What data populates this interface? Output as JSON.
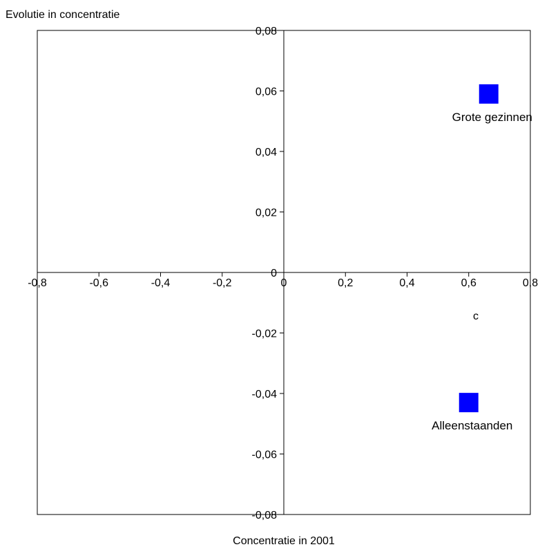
{
  "chart_data": {
    "type": "scatter",
    "title": "",
    "xlabel": "Concentratie in 2001",
    "ylabel": "Evolutie in concentratie",
    "xlim": [
      -0.8,
      0.8
    ],
    "ylim": [
      -0.08,
      0.08
    ],
    "x_ticks": [
      "-0,8",
      "-0,6",
      "-0,4",
      "-0,2",
      "0",
      "0,2",
      "0,4",
      "0,6",
      "0,8"
    ],
    "y_ticks": [
      "0,08",
      "0,06",
      "0,04",
      "0,02",
      "0",
      "-0,02",
      "-0,04",
      "-0,06",
      "-0,08"
    ],
    "annotation": "c",
    "points": [
      {
        "label": "Grote gezinnen",
        "x": 0.665,
        "y": 0.059
      },
      {
        "label": "Alleenstaanden",
        "x": 0.6,
        "y": -0.043
      }
    ],
    "colors": {
      "marker": "#0000FF",
      "axis": "#000000"
    },
    "grid": false,
    "legend": "none"
  }
}
